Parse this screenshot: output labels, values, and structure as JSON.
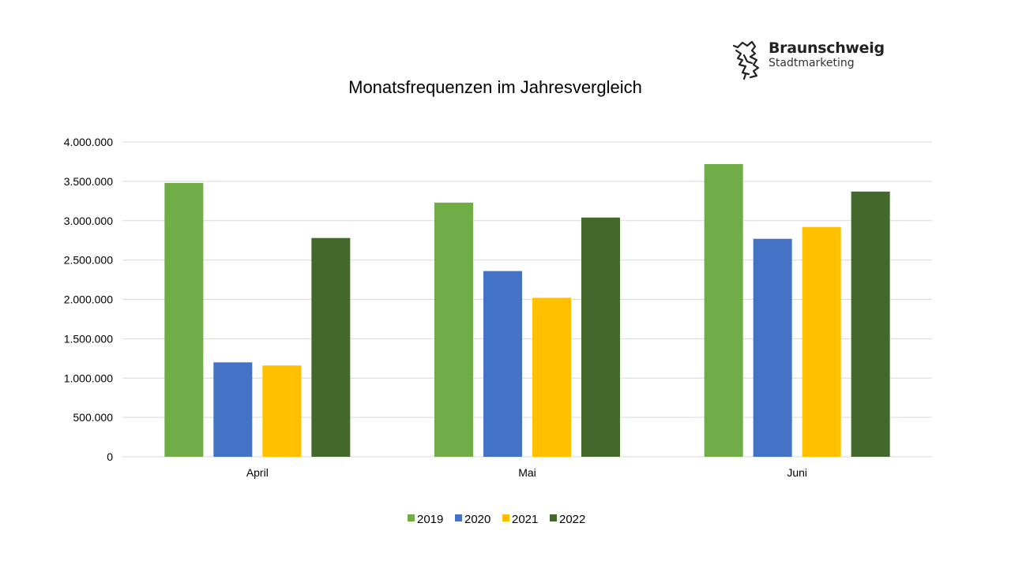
{
  "logo": {
    "name": "Braunschweig",
    "subtitle": "Stadtmarketing",
    "icon": "lion-icon"
  },
  "colors": {
    "2019": "#70AD47",
    "2020": "#4472C4",
    "2021": "#FFC000",
    "2022": "#43682B",
    "grid": "#D9D9D9",
    "text": "#000000"
  },
  "chart_data": {
    "type": "bar",
    "title": "Monatsfrequenzen im Jahresvergleich",
    "xlabel": "",
    "ylabel": "",
    "categories": [
      "April",
      "Mai",
      "Juni"
    ],
    "series": [
      {
        "name": "2019",
        "values": [
          3480000,
          3230000,
          3720000
        ]
      },
      {
        "name": "2020",
        "values": [
          1200000,
          2360000,
          2770000
        ]
      },
      {
        "name": "2021",
        "values": [
          1160000,
          2020000,
          2920000
        ]
      },
      {
        "name": "2022",
        "values": [
          2780000,
          3040000,
          3370000
        ]
      }
    ],
    "ylim": [
      0,
      4000000
    ],
    "yticks": [
      0,
      500000,
      1000000,
      1500000,
      2000000,
      2500000,
      3000000,
      3500000,
      4000000
    ],
    "ytick_labels": [
      "0",
      "500.000",
      "1.000.000",
      "1.500.000",
      "2.000.000",
      "2.500.000",
      "3.000.000",
      "3.500.000",
      "4.000.000"
    ],
    "grid": true,
    "legend": "bottom"
  }
}
